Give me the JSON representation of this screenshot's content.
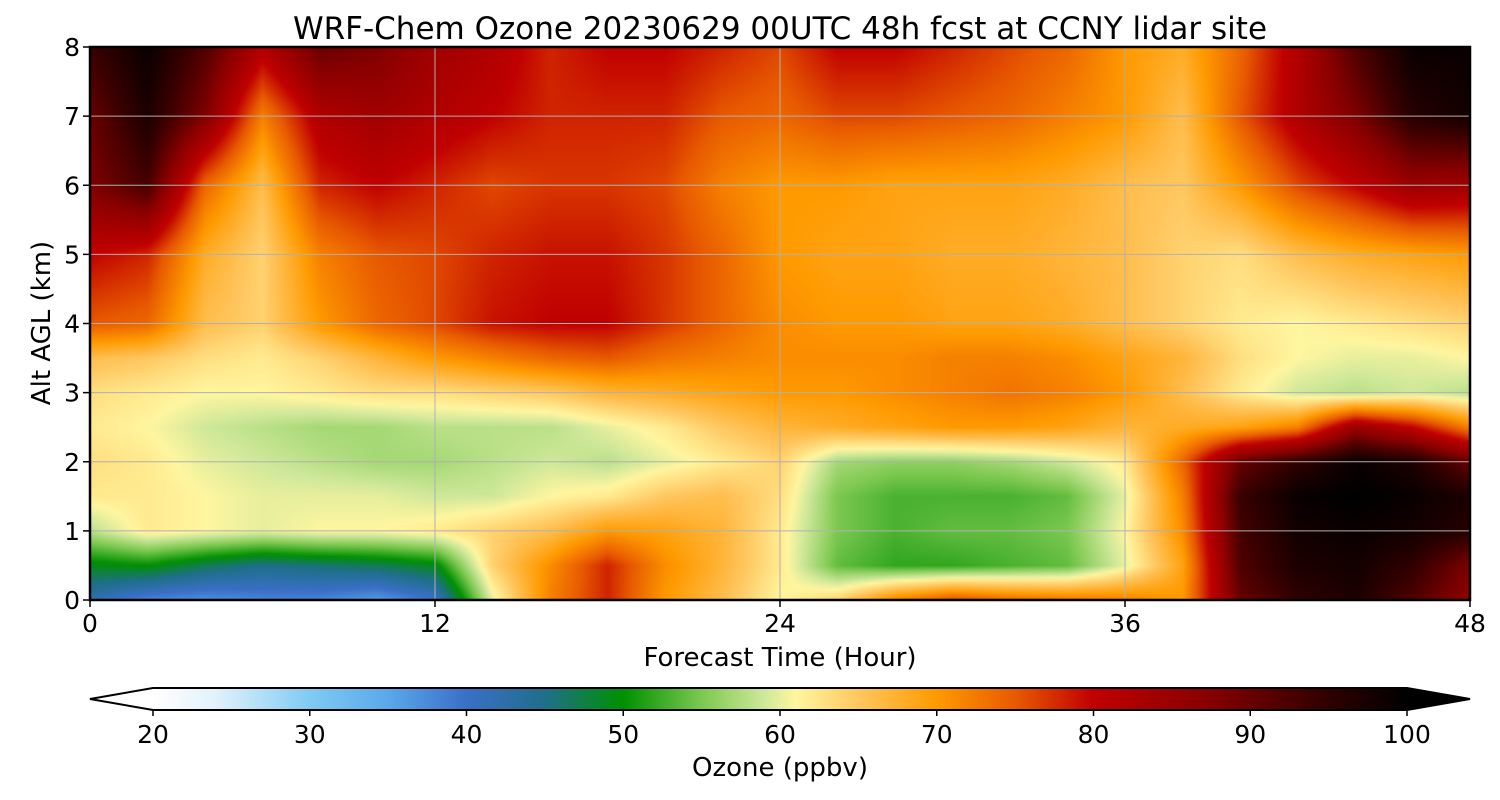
{
  "chart_data": {
    "type": "heatmap",
    "title": "WRF-Chem Ozone  20230629 00UTC 48h fcst at CCNY lidar site",
    "xlabel": "Forecast Time (Hour)",
    "ylabel": "Alt AGL (km)",
    "xlim": [
      0,
      48
    ],
    "ylim": [
      0,
      8
    ],
    "x_ticks": [
      "0",
      "12",
      "24",
      "36",
      "48"
    ],
    "y_ticks": [
      "0",
      "1",
      "2",
      "3",
      "4",
      "5",
      "6",
      "7",
      "8"
    ],
    "grid": true,
    "colorbar": {
      "label": "Ozone  (ppbv)",
      "min": 20,
      "max": 100,
      "extend": "both",
      "ticks": [
        "20",
        "30",
        "40",
        "50",
        "60",
        "70",
        "80",
        "90",
        "100"
      ],
      "stops": [
        {
          "v": 20,
          "c": "#ffffff"
        },
        {
          "v": 24,
          "c": "#e2f1fb"
        },
        {
          "v": 30,
          "c": "#7fcbf3"
        },
        {
          "v": 35,
          "c": "#5aa8ea"
        },
        {
          "v": 40,
          "c": "#3a6fc8"
        },
        {
          "v": 45,
          "c": "#1f6f8a"
        },
        {
          "v": 50,
          "c": "#009000"
        },
        {
          "v": 55,
          "c": "#7cc850"
        },
        {
          "v": 59,
          "c": "#cfe89a"
        },
        {
          "v": 61,
          "c": "#fff6a0"
        },
        {
          "v": 65,
          "c": "#ffc760"
        },
        {
          "v": 70,
          "c": "#ff9a00"
        },
        {
          "v": 75,
          "c": "#e85a00"
        },
        {
          "v": 80,
          "c": "#c00000"
        },
        {
          "v": 87,
          "c": "#8a0000"
        },
        {
          "v": 94,
          "c": "#3a0000"
        },
        {
          "v": 100,
          "c": "#000000"
        }
      ]
    },
    "x": [
      0,
      2,
      4,
      6,
      8,
      10,
      12,
      14,
      16,
      18,
      20,
      22,
      24,
      26,
      28,
      30,
      32,
      34,
      36,
      38,
      40,
      42,
      44,
      46,
      48
    ],
    "y": [
      0,
      0.5,
      1,
      1.5,
      2,
      2.5,
      3,
      3.5,
      4,
      5,
      6,
      7,
      8
    ],
    "z": [
      [
        42,
        38,
        37,
        38,
        38,
        36,
        40,
        60,
        72,
        78,
        70,
        66,
        61,
        64,
        72,
        76,
        74,
        73,
        72,
        70,
        90,
        95,
        97,
        92,
        86
      ],
      [
        49,
        50,
        47,
        45,
        46,
        47,
        49,
        64,
        71,
        78,
        71,
        67,
        62,
        54,
        52,
        52,
        53,
        54,
        60,
        69,
        92,
        97,
        98,
        95,
        88
      ],
      [
        58,
        62,
        61,
        60,
        61,
        61,
        62,
        64,
        66,
        70,
        69,
        67,
        62,
        55,
        53,
        54,
        54,
        55,
        61,
        71,
        93,
        98,
        99,
        98,
        96
      ],
      [
        62,
        62,
        61,
        60,
        60,
        60,
        59,
        59,
        61,
        62,
        65,
        66,
        63,
        55,
        53,
        53,
        53,
        54,
        60,
        72,
        94,
        99,
        100,
        99,
        97
      ],
      [
        63,
        62,
        60,
        59,
        58,
        57,
        57,
        58,
        59,
        58,
        60,
        62,
        64,
        57,
        56,
        56,
        57,
        59,
        62,
        74,
        90,
        95,
        99,
        97,
        90
      ],
      [
        62,
        61,
        59,
        58,
        57,
        57,
        58,
        58,
        58,
        60,
        62,
        65,
        67,
        68,
        69,
        70,
        70,
        69,
        67,
        68,
        69,
        72,
        85,
        80,
        72
      ],
      [
        63,
        62,
        61,
        61,
        62,
        63,
        63,
        64,
        65,
        67,
        68,
        69,
        70,
        70,
        71,
        72,
        73,
        72,
        70,
        66,
        62,
        59,
        58,
        59,
        58
      ],
      [
        66,
        65,
        63,
        62,
        64,
        67,
        70,
        72,
        74,
        75,
        73,
        72,
        71,
        71,
        71,
        72,
        72,
        71,
        69,
        67,
        63,
        61,
        60,
        60,
        61
      ],
      [
        75,
        74,
        66,
        64,
        70,
        74,
        76,
        79,
        80,
        80,
        77,
        74,
        71,
        70,
        70,
        69,
        69,
        68,
        66,
        64,
        62,
        61,
        62,
        63,
        64
      ],
      [
        80,
        78,
        68,
        64,
        72,
        75,
        76,
        78,
        79,
        79,
        77,
        74,
        70,
        69,
        69,
        68,
        68,
        67,
        66,
        64,
        63,
        66,
        68,
        69,
        70
      ],
      [
        88,
        93,
        74,
        66,
        78,
        80,
        78,
        76,
        77,
        77,
        76,
        72,
        70,
        70,
        69,
        69,
        69,
        68,
        66,
        65,
        70,
        76,
        80,
        85,
        84
      ],
      [
        90,
        97,
        88,
        72,
        82,
        84,
        82,
        80,
        78,
        78,
        78,
        75,
        74,
        76,
        76,
        75,
        74,
        72,
        70,
        66,
        75,
        82,
        88,
        96,
        98
      ],
      [
        94,
        99,
        92,
        82,
        90,
        88,
        84,
        82,
        78,
        80,
        80,
        78,
        76,
        80,
        80,
        78,
        76,
        74,
        70,
        68,
        74,
        82,
        92,
        99,
        99
      ]
    ]
  }
}
